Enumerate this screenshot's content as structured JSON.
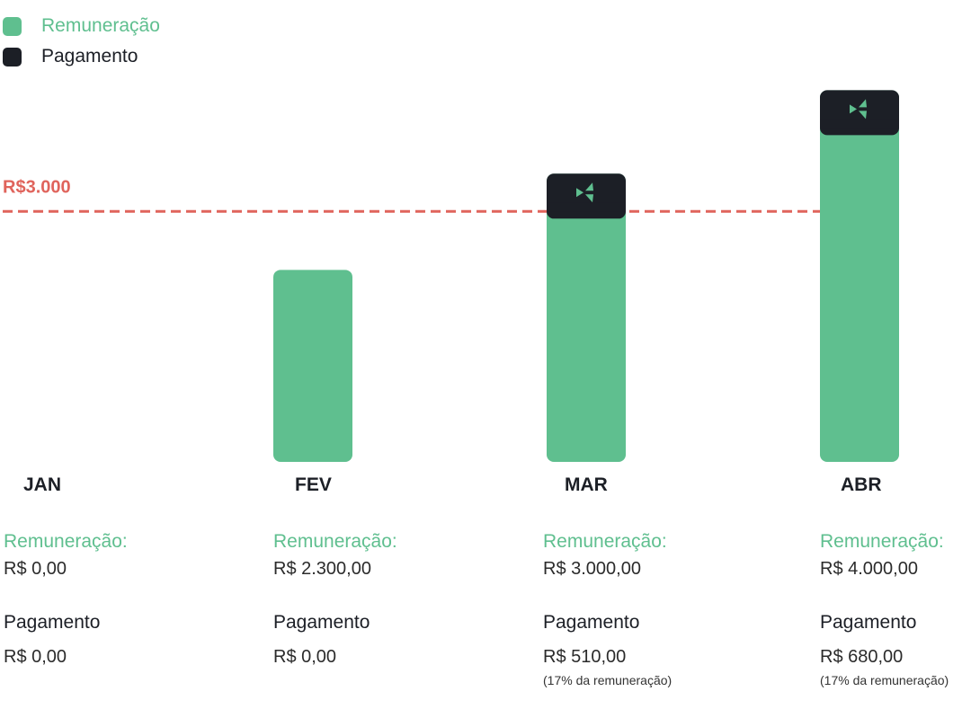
{
  "legend": [
    {
      "label": "Remuneração",
      "color": "#5fbf8f"
    },
    {
      "label": "Pagamento",
      "color": "#1c1f26"
    }
  ],
  "colors": {
    "remuneration": "#5fbf8f",
    "payment": "#1c1f26",
    "threshold": "#e0645c",
    "icon": "#5fbf8f"
  },
  "chart_data": {
    "type": "bar",
    "stacked": true,
    "categories": [
      "JAN",
      "FEV",
      "MAR",
      "ABR"
    ],
    "series": [
      {
        "name": "Remuneração",
        "values": [
          0,
          2300,
          3000,
          4000
        ]
      },
      {
        "name": "Pagamento",
        "values": [
          0,
          0,
          510,
          680
        ]
      }
    ],
    "threshold": {
      "value": 3000,
      "label": "R$3.000",
      "style": "dashed"
    },
    "ylim": [
      0,
      5000
    ],
    "grid": false,
    "legend_position": "top-left",
    "payment_icon": "logo-icon"
  },
  "details": [
    {
      "rem_label": "Remuneração:",
      "rem_value": "R$ 0,00",
      "pay_label": "Pagamento",
      "pay_value": "R$ 0,00",
      "pay_note": ""
    },
    {
      "rem_label": "Remuneração:",
      "rem_value": "R$ 2.300,00",
      "pay_label": "Pagamento",
      "pay_value": "R$ 0,00",
      "pay_note": ""
    },
    {
      "rem_label": "Remuneração:",
      "rem_value": "R$ 3.000,00",
      "pay_label": "Pagamento",
      "pay_value": "R$ 510,00",
      "pay_note": "(17% da remuneração)"
    },
    {
      "rem_label": "Remuneração:",
      "rem_value": "R$ 4.000,00",
      "pay_label": "Pagamento",
      "pay_value": "R$ 680,00",
      "pay_note": "(17% da remuneração)"
    }
  ]
}
